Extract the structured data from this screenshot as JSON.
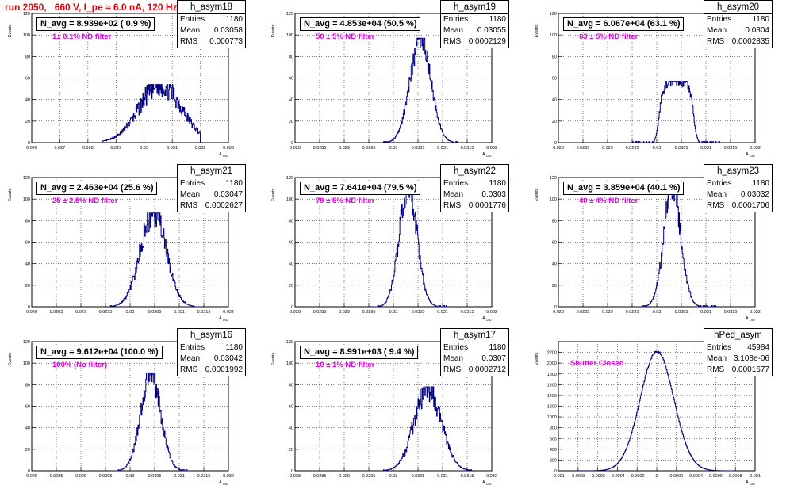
{
  "title": "run 2050,   660 V, I_pe ≈ 6.0 nA, 120 Hz",
  "common": {
    "ylabel": "Events",
    "xlabel": "A",
    "xlabel_sub": "UID",
    "line_color": "#000080",
    "label_color": "#e600e6",
    "title_color": "#e8000b"
  },
  "chart_data": [
    {
      "type": "histogram",
      "name": "h_asym18",
      "n_avg": "N_avg = 8.939e+02 ( 0.9 %)",
      "filter": "1± 0.1% ND filter",
      "stats": {
        "Entries": "1180",
        "Mean": "0.03058",
        "RMS": "0.000773"
      },
      "xlim": [
        0.026,
        0.033
      ],
      "ylim": [
        0,
        120
      ],
      "xticks": [
        "0.026",
        "0.027",
        "0.028",
        "0.029",
        "0.03",
        "0.031",
        "0.032",
        "0.033"
      ],
      "yticks": [
        "0",
        "20",
        "40",
        "60",
        "80",
        "100",
        "120"
      ],
      "hist_range": [
        0.0285,
        0.032
      ],
      "peak": 54,
      "mean": 0.03058,
      "sigma": 0.00075,
      "noise": 0.22
    },
    {
      "type": "histogram",
      "name": "h_asym19",
      "n_avg": "N_avg = 4.853e+04 (50.5 %)",
      "filter": "50 ± 5% ND filter",
      "stats": {
        "Entries": "1180",
        "Mean": "0.03055",
        "RMS": "0.0002129"
      },
      "xlim": [
        0.028,
        0.032
      ],
      "ylim": [
        0,
        120
      ],
      "xticks": [
        "0.028",
        "0.0285",
        "0.029",
        "0.0295",
        "0.03",
        "0.0305",
        "0.031",
        "0.0315",
        "0.032"
      ],
      "yticks": [
        "0",
        "20",
        "40",
        "60",
        "80",
        "100",
        "120"
      ],
      "hist_range": [
        0.0298,
        0.0313
      ],
      "peak": 97,
      "mean": 0.03055,
      "sigma": 0.00021,
      "noise": 0.12
    },
    {
      "type": "histogram",
      "name": "h_asym20",
      "n_avg": "N_avg = 6.067e+04 (63.1 %)",
      "filter": "63 ± 5% ND filter",
      "stats": {
        "Entries": "1180",
        "Mean": "0.0304",
        "RMS": "0.0002835"
      },
      "xlim": [
        0.028,
        0.032
      ],
      "ylim": [
        0,
        120
      ],
      "xticks": [
        "0.028",
        "0.0285",
        "0.029",
        "0.0295",
        "0.03",
        "0.0305",
        "0.031",
        "0.0315",
        "0.032"
      ],
      "yticks": [
        "0",
        "20",
        "40",
        "60",
        "80",
        "100",
        "120"
      ],
      "hist_range": [
        0.0295,
        0.0313
      ],
      "peak": 57,
      "mean": 0.0304,
      "sigma": 0.00028,
      "noise": 0.1,
      "flat": true
    },
    {
      "type": "histogram",
      "name": "h_asym21",
      "n_avg": "N_avg = 2.463e+04 (25.6 %)",
      "filter": "25 ± 2.5% ND filter",
      "stats": {
        "Entries": "1180",
        "Mean": "0.03047",
        "RMS": "0.0002627"
      },
      "xlim": [
        0.028,
        0.032
      ],
      "ylim": [
        0,
        120
      ],
      "xticks": [
        "0.028",
        "0.0285",
        "0.029",
        "0.0295",
        "0.03",
        "0.0305",
        "0.031",
        "0.0315",
        "0.032"
      ],
      "yticks": [
        "0",
        "20",
        "40",
        "60",
        "80",
        "100",
        "120"
      ],
      "hist_range": [
        0.0296,
        0.0314
      ],
      "peak": 87,
      "mean": 0.03047,
      "sigma": 0.00026,
      "noise": 0.18
    },
    {
      "type": "histogram",
      "name": "h_asym22",
      "n_avg": "N_avg = 7.641e+04 (79.5 %)",
      "filter": "79 ± 5% ND filter",
      "stats": {
        "Entries": "1180",
        "Mean": "0.0303",
        "RMS": "0.0001776"
      },
      "xlim": [
        0.028,
        0.032
      ],
      "ylim": [
        0,
        120
      ],
      "xticks": [
        "0.028",
        "0.0285",
        "0.029",
        "0.0295",
        "0.03",
        "0.0305",
        "0.031",
        "0.0315",
        "0.032"
      ],
      "yticks": [
        "0",
        "20",
        "40",
        "60",
        "80",
        "100",
        "120"
      ],
      "hist_range": [
        0.0296,
        0.0311
      ],
      "peak": 112,
      "mean": 0.0303,
      "sigma": 0.00018,
      "noise": 0.15
    },
    {
      "type": "histogram",
      "name": "h_asym23",
      "n_avg": "N_avg = 3.859e+04 (40.1 %)",
      "filter": "40 ± 4% ND filter",
      "stats": {
        "Entries": "1180",
        "Mean": "0.03032",
        "RMS": "0.0001706"
      },
      "xlim": [
        0.028,
        0.032
      ],
      "ylim": [
        0,
        120
      ],
      "xticks": [
        "0.028",
        "0.0285",
        "0.029",
        "0.0295",
        "0.03",
        "0.0305",
        "0.031",
        "0.0315",
        "0.032"
      ],
      "yticks": [
        "0",
        "20",
        "40",
        "60",
        "80",
        "100",
        "120"
      ],
      "hist_range": [
        0.0297,
        0.0312
      ],
      "peak": 112,
      "mean": 0.03032,
      "sigma": 0.00017,
      "noise": 0.15
    },
    {
      "type": "histogram",
      "name": "h_asym16",
      "n_avg": "N_avg = 9.612e+04 (100.0 %)",
      "filter": "100% (No filter)",
      "stats": {
        "Entries": "1180",
        "Mean": "0.03042",
        "RMS": "0.0001992"
      },
      "xlim": [
        0.028,
        0.032
      ],
      "ylim": [
        0,
        120
      ],
      "xticks": [
        "0.028",
        "0.0285",
        "0.029",
        "0.0295",
        "0.03",
        "0.0305",
        "0.031",
        "0.0315",
        "0.032"
      ],
      "yticks": [
        "0",
        "20",
        "40",
        "60",
        "80",
        "100",
        "120"
      ],
      "hist_range": [
        0.0297,
        0.0312
      ],
      "peak": 91,
      "mean": 0.03042,
      "sigma": 0.0002,
      "noise": 0.15
    },
    {
      "type": "histogram",
      "name": "h_asym17",
      "n_avg": "N_avg = 8.991e+03 ( 9.4 %)",
      "filter": "10 ± 1% ND filter",
      "stats": {
        "Entries": "1180",
        "Mean": "0.0307",
        "RMS": "0.0002712"
      },
      "xlim": [
        0.028,
        0.032
      ],
      "ylim": [
        0,
        120
      ],
      "xticks": [
        "0.028",
        "0.0285",
        "0.029",
        "0.0295",
        "0.03",
        "0.0305",
        "0.031",
        "0.0315",
        "0.032"
      ],
      "yticks": [
        "0",
        "20",
        "40",
        "60",
        "80",
        "100",
        "120"
      ],
      "hist_range": [
        0.0298,
        0.0316
      ],
      "peak": 78,
      "mean": 0.0307,
      "sigma": 0.00027,
      "noise": 0.18
    },
    {
      "type": "histogram",
      "name": "hPed_asym",
      "n_avg": "",
      "filter": "Shutter Closed",
      "stats": {
        "Entries": "45984",
        "Mean": "3.108e-06",
        "RMS": "0.0001677"
      },
      "xlim": [
        -0.001,
        0.001
      ],
      "ylim": [
        0,
        2400
      ],
      "xticks": [
        "-0.001",
        "-0.0008",
        "-0.0006",
        "-0.0004",
        "-0.0002",
        "0",
        "0.0002",
        "0.0004",
        "0.0006",
        "0.0008",
        "0.001"
      ],
      "yticks": [
        "0",
        "200",
        "400",
        "600",
        "800",
        "1000",
        "1200",
        "1400",
        "1600",
        "1800",
        "2000",
        "2200"
      ],
      "hist_range": [
        -0.0008,
        0.0008
      ],
      "peak": 2220,
      "mean": 3e-06,
      "sigma": 0.00017,
      "noise": 0.01
    }
  ]
}
